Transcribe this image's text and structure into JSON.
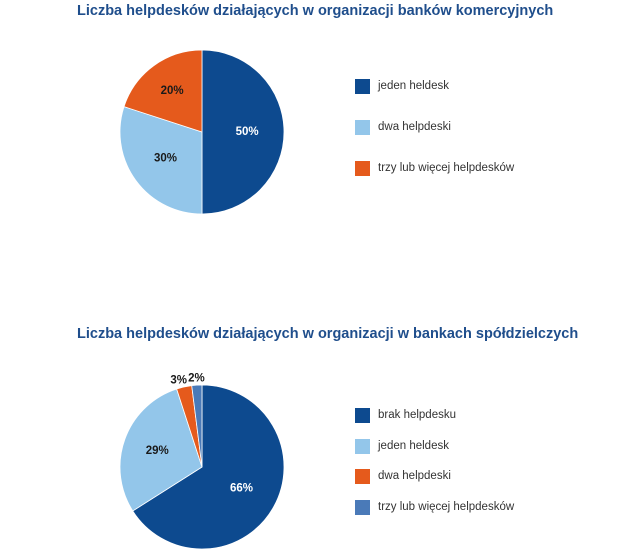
{
  "chart_data": [
    {
      "type": "pie",
      "title": "Liczba helpdesków działających w organizacji banków komercyjnych",
      "categories": [
        "jeden heldesk",
        "dwa helpdeski",
        "trzy lub więcej helpdesków"
      ],
      "values": [
        50,
        30,
        20
      ],
      "labels": [
        "50%",
        "30%",
        "20%"
      ],
      "colors": [
        "#0d4a8f",
        "#93c6ea",
        "#e55a1c"
      ],
      "label_colors": [
        "#ffffff",
        "#1a1a1a",
        "#1a1a1a"
      ],
      "legend": "right"
    },
    {
      "type": "pie",
      "title": "Liczba helpdesków działających w organizacji w bankach spółdzielczych",
      "categories": [
        "brak helpdesku",
        "jeden heldesk",
        "dwa helpdeski",
        "trzy lub więcej helpdesków"
      ],
      "values": [
        66,
        29,
        3,
        2
      ],
      "labels": [
        "66%",
        "29%",
        "3%",
        "2%"
      ],
      "colors": [
        "#0d4a8f",
        "#93c6ea",
        "#e55a1c",
        "#4a7ab8"
      ],
      "label_colors": [
        "#ffffff",
        "#1a1a1a",
        "#1a1a1a",
        "#1a1a1a"
      ],
      "legend": "right"
    }
  ]
}
